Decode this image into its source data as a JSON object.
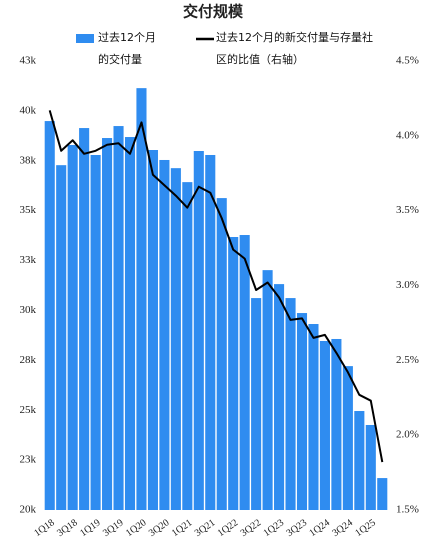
{
  "chart_data": {
    "type": "bar_line",
    "title": "交付规模",
    "categories": [
      "1Q18",
      null,
      "3Q18",
      null,
      "1Q19",
      null,
      "3Q19",
      null,
      "1Q20",
      null,
      "3Q20",
      null,
      "1Q21",
      null,
      "3Q21",
      null,
      "1Q22",
      null,
      "3Q22",
      null,
      "1Q23",
      null,
      "3Q23",
      null,
      "1Q24",
      null,
      "3Q24",
      null,
      "1Q25",
      null
    ],
    "series": [
      {
        "name": "过去12个月的交付量",
        "type": "bar",
        "color": "#2f8cf0",
        "axis": "y",
        "values": [
          39490,
          37280,
          38290,
          39140,
          37790,
          38640,
          39240,
          38690,
          41140,
          38040,
          37540,
          37130,
          36430,
          37990,
          37790,
          35630,
          33680,
          33780,
          30620,
          32020,
          31320,
          30620,
          29870,
          29320,
          28470,
          28570,
          27210,
          24960,
          24260,
          21600
        ]
      },
      {
        "name": "过去12个月的新交付量与存量社区的比值（右轴）",
        "type": "line",
        "color": "#000000",
        "axis": "y2",
        "values": [
          4.17,
          3.9,
          3.97,
          3.88,
          3.9,
          3.94,
          3.95,
          3.88,
          4.09,
          3.74,
          3.67,
          3.6,
          3.52,
          3.66,
          3.62,
          3.45,
          3.24,
          3.18,
          2.97,
          3.02,
          2.92,
          2.77,
          2.78,
          2.65,
          2.67,
          2.55,
          2.42,
          2.27,
          2.23,
          1.82
        ]
      }
    ],
    "ylim": [
      20000,
      42500
    ],
    "yticks": [
      {
        "value": 20000,
        "label": "20k"
      },
      {
        "value": 22500,
        "label": "23k"
      },
      {
        "value": 25000,
        "label": "25k"
      },
      {
        "value": 27500,
        "label": "28k"
      },
      {
        "value": 30000,
        "label": "30k"
      },
      {
        "value": 32500,
        "label": "33k"
      },
      {
        "value": 35000,
        "label": "35k"
      },
      {
        "value": 37500,
        "label": "38k"
      },
      {
        "value": 40000,
        "label": "40k"
      },
      {
        "value": 42500,
        "label": "43k"
      }
    ],
    "y2lim": [
      1.5,
      4.5
    ],
    "y2ticks": [
      {
        "value": 1.5,
        "label": "1.5%"
      },
      {
        "value": 2.0,
        "label": "2.0%"
      },
      {
        "value": 2.5,
        "label": "2.5%"
      },
      {
        "value": 3.0,
        "label": "3.0%"
      },
      {
        "value": 3.5,
        "label": "3.5%"
      },
      {
        "value": 4.0,
        "label": "4.0%"
      },
      {
        "value": 4.5,
        "label": "4.5%"
      }
    ]
  }
}
